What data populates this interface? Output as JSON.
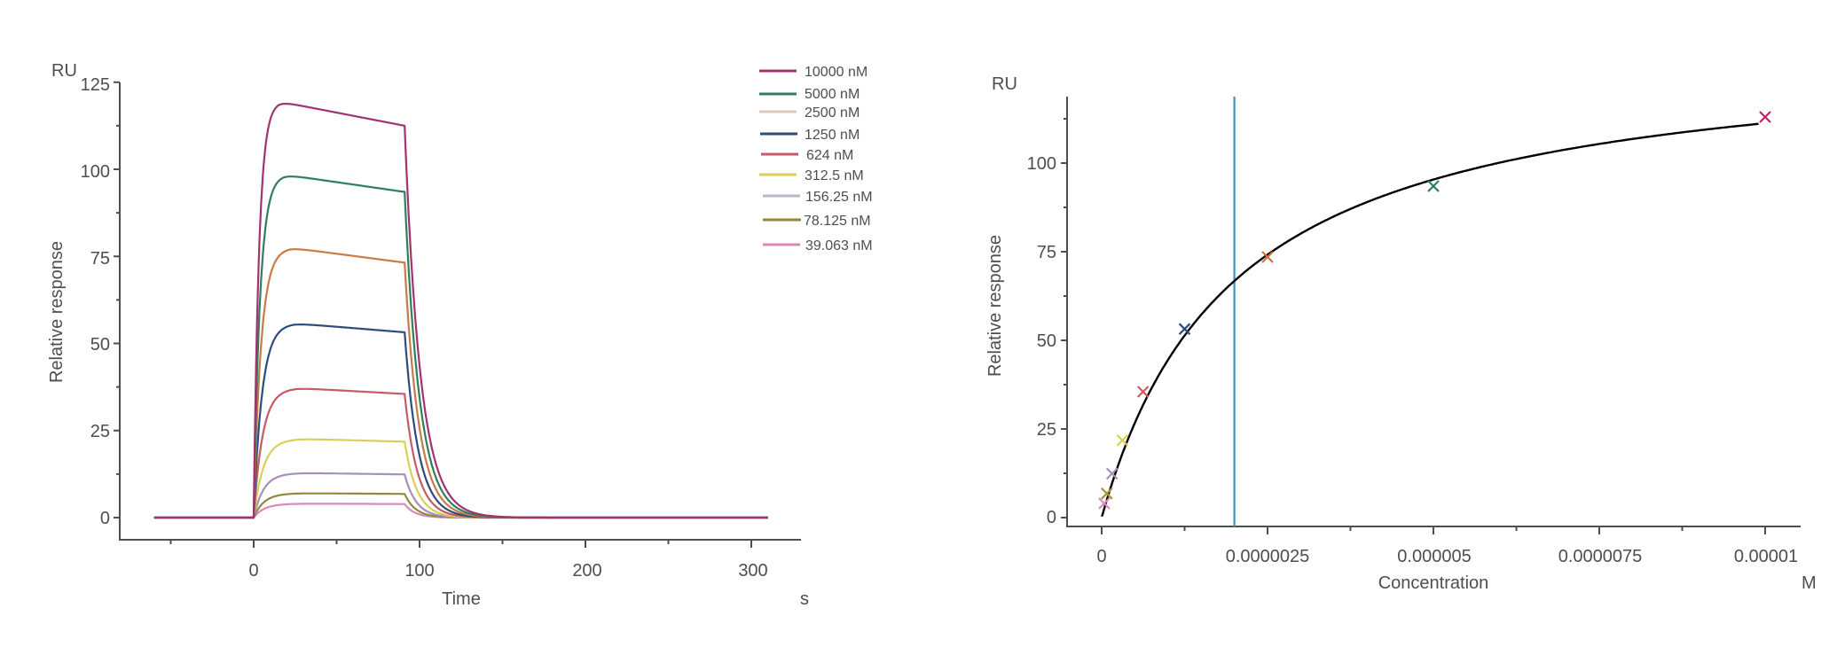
{
  "chart_data": [
    {
      "id": "sensorgram",
      "type": "line",
      "title": "",
      "xlabel": "Time",
      "x_unit": "s",
      "ylabel": "Relative response",
      "y_unit": "RU",
      "xlim": [
        -60,
        310
      ],
      "ylim": [
        -6,
        125
      ],
      "x_ticks": [
        0,
        100,
        200,
        300
      ],
      "x_minor_ticks": [
        -50,
        50,
        150,
        250
      ],
      "y_ticks": [
        0,
        25,
        50,
        75,
        100,
        125
      ],
      "y_minor_ticks": [
        12.5,
        37.5,
        62.5,
        87.5,
        112.5
      ],
      "grid": false,
      "legend_position": "top-right",
      "association_start_s": 0,
      "dissociation_start_s": 91,
      "series": [
        {
          "name": "10000 nM",
          "color": "#a2336f",
          "peak": 119.5,
          "peak_time": 15,
          "end_assoc": 112.5,
          "kon_tau": 3.2,
          "koff_tau": 9.5
        },
        {
          "name": "5000 nM",
          "color": "#2f7e5c",
          "peak": 98.5,
          "peak_time": 18,
          "end_assoc": 93.5,
          "kon_tau": 3.8,
          "koff_tau": 9.0
        },
        {
          "name": "2500 nM",
          "color": "#c97a45",
          "legend_color": "#dcc8bb",
          "peak": 77.5,
          "peak_time": 22,
          "end_assoc": 73.2,
          "kon_tau": 4.4,
          "koff_tau": 8.6
        },
        {
          "name": "1250 nM",
          "color": "#2c4c7e",
          "peak": 55.8,
          "peak_time": 24,
          "end_assoc": 53.2,
          "kon_tau": 5.0,
          "koff_tau": 8.2
        },
        {
          "name": "624 nM",
          "color": "#c65a68",
          "peak": 37.2,
          "peak_time": 26,
          "end_assoc": 35.5,
          "kon_tau": 5.4,
          "koff_tau": 7.8
        },
        {
          "name": "312.5 nM",
          "color": "#d9cf5a",
          "peak": 22.6,
          "peak_time": 28,
          "end_assoc": 21.8,
          "kon_tau": 5.8,
          "koff_tau": 7.4
        },
        {
          "name": "156.25 nM",
          "color": "#a88fb8",
          "legend_color": "#bdb6c4",
          "peak": 12.8,
          "peak_time": 30,
          "end_assoc": 12.4,
          "kon_tau": 6.0,
          "koff_tau": 7.0
        },
        {
          "name": "78.125 nM",
          "color": "#8f8a3e",
          "peak": 7.0,
          "peak_time": 30,
          "end_assoc": 6.8,
          "kon_tau": 6.2,
          "koff_tau": 6.6
        },
        {
          "name": "39.063 nM",
          "color": "#d889bf",
          "peak": 4.0,
          "peak_time": 30,
          "end_assoc": 3.9,
          "kon_tau": 6.4,
          "koff_tau": 6.2
        }
      ]
    },
    {
      "id": "affinity",
      "type": "scatter",
      "title": "",
      "xlabel": "Concentration",
      "x_unit": "M",
      "ylabel": "Relative response",
      "y_unit": "RU",
      "xlim": [
        -3.8e-07,
        1.07e-05
      ],
      "ylim": [
        -3,
        118
      ],
      "x_ticks": [
        0,
        2.5e-06,
        5e-06,
        7.5e-06,
        1e-05
      ],
      "x_tick_labels": [
        "0",
        "0.0000025",
        "0.000005",
        "0.0000075",
        "0.00001"
      ],
      "x_minor_ticks": [
        1.25e-06,
        3.75e-06,
        6.25e-06,
        8.75e-06
      ],
      "y_ticks": [
        0,
        25,
        50,
        75,
        100
      ],
      "y_tick_labels": [
        "0",
        "25",
        "50",
        "75",
        "100"
      ],
      "y_minor_ticks": [
        12.5,
        37.5,
        62.5,
        87.5,
        112.5
      ],
      "grid": false,
      "marker": "x",
      "points": [
        {
          "conc_nM": 39.063,
          "x": 3.9063e-08,
          "y": 4.0,
          "color": "#d889bf"
        },
        {
          "conc_nM": 78.125,
          "x": 7.8125e-08,
          "y": 6.8,
          "color": "#a3963a"
        },
        {
          "conc_nM": 156.25,
          "x": 1.5625e-07,
          "y": 12.4,
          "color": "#a88fb8"
        },
        {
          "conc_nM": 312.5,
          "x": 3.125e-07,
          "y": 21.8,
          "color": "#d9cf5a"
        },
        {
          "conc_nM": 624,
          "x": 6.24e-07,
          "y": 35.5,
          "color": "#d05a5a"
        },
        {
          "conc_nM": 1250,
          "x": 1.25e-06,
          "y": 53.2,
          "color": "#2c4c7e"
        },
        {
          "conc_nM": 2500,
          "x": 2.5e-06,
          "y": 73.5,
          "color": "#d0703a"
        },
        {
          "conc_nM": 5000,
          "x": 5e-06,
          "y": 93.5,
          "color": "#2f7e5c"
        },
        {
          "conc_nM": 10000,
          "x": 1e-05,
          "y": 113.0,
          "color": "#c0246a"
        }
      ],
      "fit": {
        "model": "steady-state 1:1",
        "Rmax": 133.5,
        "KD_M": 2e-06,
        "x_range": [
          0,
          9.9e-06
        ],
        "color": "#000000"
      },
      "kd_marker": {
        "x": 2e-06,
        "color": "#3a93c9"
      }
    }
  ],
  "left_chart": {
    "y_unit_label": "RU",
    "y_axis_title": "Relative response",
    "x_axis_title": "Time",
    "x_unit_label": "s",
    "y_tick_labels": [
      "0",
      "25",
      "50",
      "75",
      "100",
      "125"
    ],
    "x_tick_labels": [
      "0",
      "100",
      "200",
      "300"
    ],
    "legend": [
      "10000 nM",
      "5000 nM",
      "2500 nM",
      "1250 nM",
      "624 nM",
      "312.5 nM",
      "156.25 nM",
      "78.125 nM",
      "39.063 nM"
    ]
  },
  "right_chart": {
    "y_unit_label": "RU",
    "y_axis_title": "Relative response",
    "x_axis_title": "Concentration",
    "x_unit_label": "M",
    "y_tick_labels": [
      "0",
      "25",
      "50",
      "75",
      "100"
    ],
    "x_tick_labels": [
      "0",
      "0.0000025",
      "0.000005",
      "0.0000075",
      "0.00001"
    ]
  },
  "colors": {
    "axis": "#4a4f54",
    "text": "#4a4f54",
    "background": "#ffffff"
  }
}
